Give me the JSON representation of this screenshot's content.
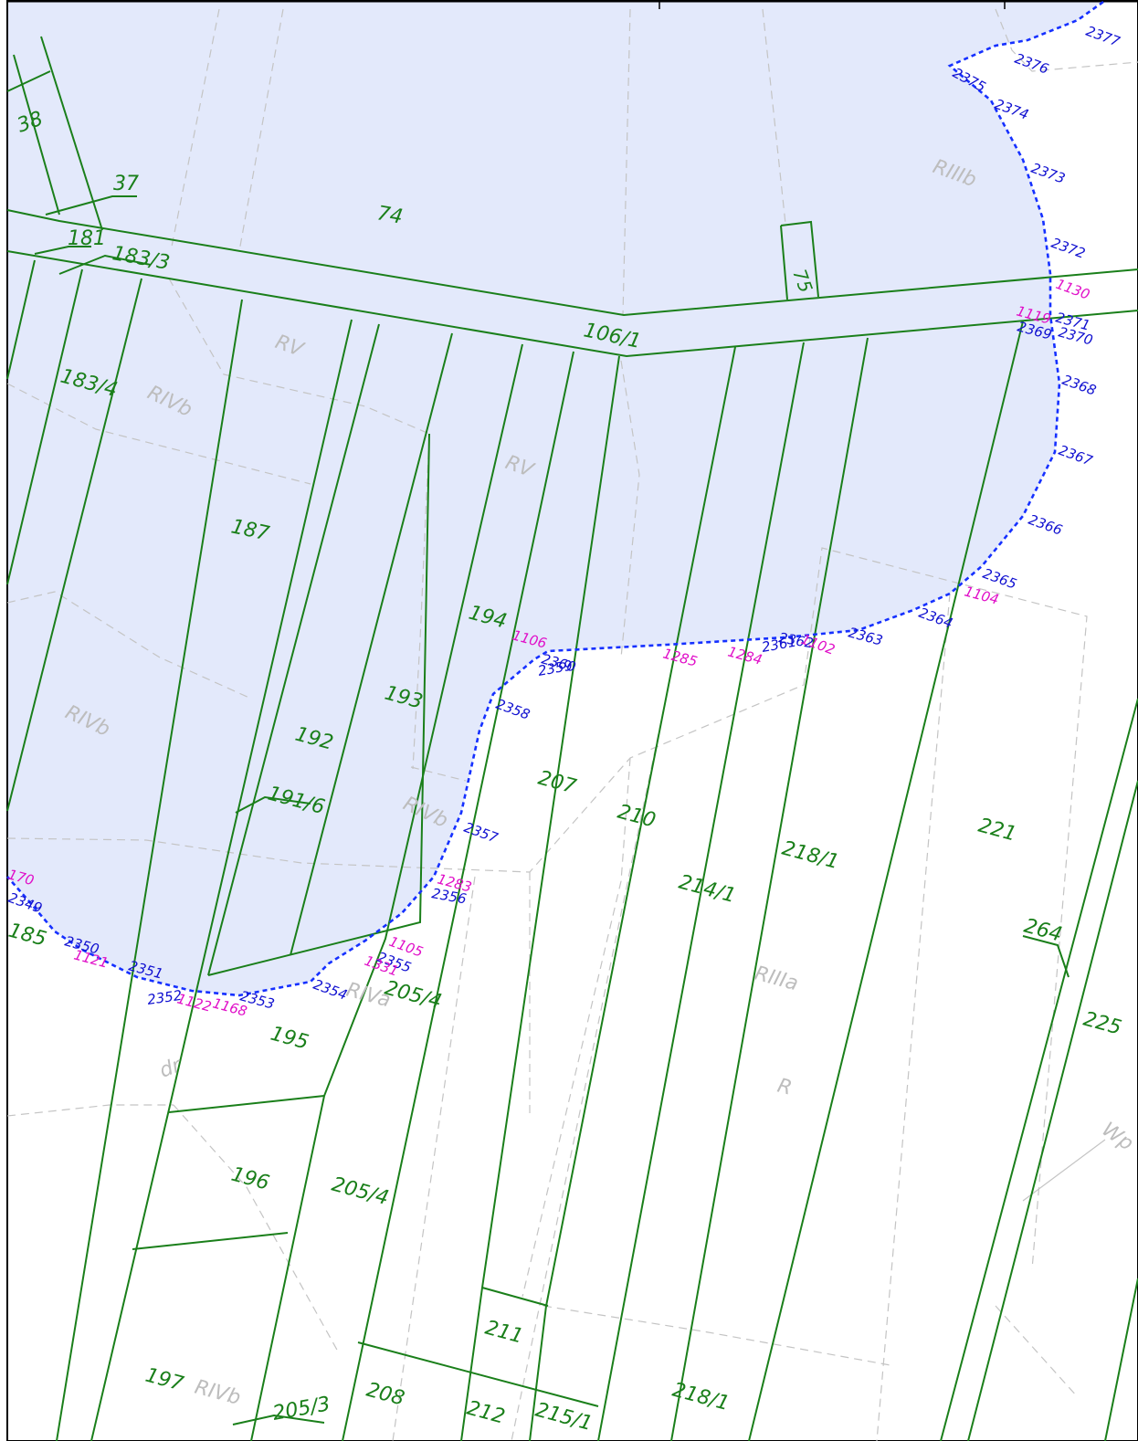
{
  "colors": {
    "area_fill": "#e3e9fb",
    "parcel_line": "#1a7f1a",
    "soil_line": "#c4c4c4",
    "boundary": "#1530ff",
    "point_blue": "#1010d0",
    "point_magenta": "#e010c8"
  },
  "parcels": [
    "38",
    "37",
    "181",
    "183/3",
    "74",
    "75",
    "106/1",
    "183/4",
    "187",
    "194",
    "192",
    "193",
    "191/6",
    "207",
    "210",
    "214/1",
    "218/1",
    "221",
    "264",
    "225",
    "185",
    "195",
    "205/4",
    "196",
    "205/4",
    "211",
    "197",
    "208",
    "212",
    "215/1",
    "218/1",
    "205/3"
  ],
  "soil_classes": [
    "RIIIb",
    "RV",
    "RIVb",
    "RV",
    "RIVb",
    "RIVb",
    "RIVa",
    "RIIIa",
    "R",
    "Wp",
    "dr",
    "RIVb"
  ],
  "boundary_points_blue": [
    "2377",
    "2376",
    "2375",
    "2374",
    "2373",
    "2372",
    "2371",
    "2370",
    "2369",
    "2368",
    "2367",
    "2366",
    "2365",
    "2364",
    "2363",
    "2362",
    "2361",
    "2360",
    "2359",
    "2358",
    "2357",
    "2356",
    "2355",
    "2354",
    "2353",
    "2352",
    "2351",
    "2350",
    "2349"
  ],
  "boundary_points_magenta": [
    "1130",
    "1119",
    "1104",
    "1102",
    "1284",
    "1285",
    "1106",
    "1283",
    "1105",
    "1331",
    "1122",
    "1168",
    "1121",
    "170"
  ]
}
